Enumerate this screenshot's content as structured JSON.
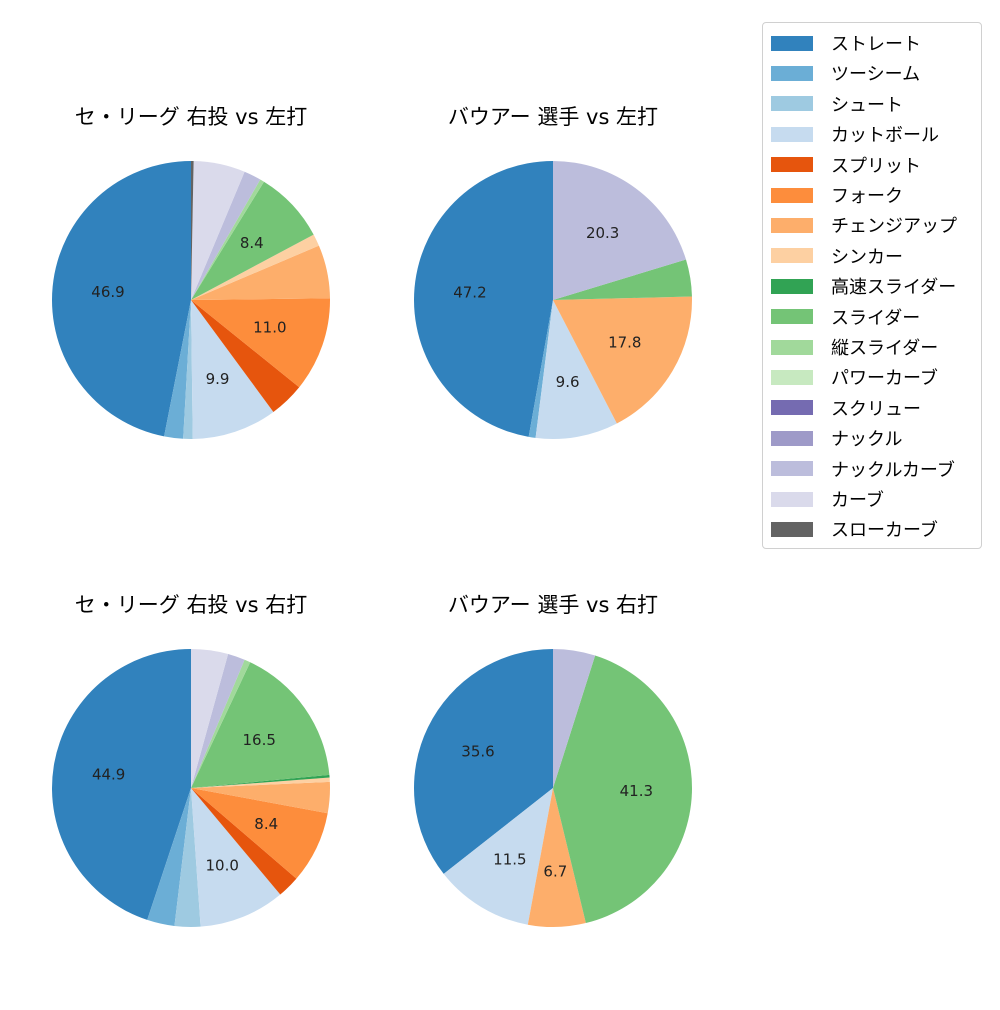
{
  "chart_data": [
    {
      "type": "pie",
      "title": "セ・リーグ 右投 vs 左打",
      "start_angle": 90,
      "direction": "counterclockwise",
      "categories": [
        "ストレート",
        "ツーシーム",
        "シュート",
        "カットボール",
        "スプリット",
        "フォーク",
        "チェンジアップ",
        "シンカー",
        "スライダー",
        "縦スライダー",
        "ナックルカーブ",
        "カーブ",
        "スローカーブ"
      ],
      "values": [
        46.9,
        2.2,
        1.1,
        9.9,
        4.1,
        11.0,
        6.2,
        1.4,
        8.4,
        0.5,
        2.0,
        6.0,
        0.3
      ],
      "labeled": {
        "ストレート": "46.9",
        "カットボール": "9.9",
        "フォーク": "11.0",
        "スライダー": "8.4"
      }
    },
    {
      "type": "pie",
      "title": "バウアー 選手 vs 左打",
      "start_angle": 90,
      "direction": "counterclockwise",
      "categories": [
        "ストレート",
        "ツーシーム",
        "カットボール",
        "チェンジアップ",
        "スライダー",
        "ナックルカーブ"
      ],
      "values": [
        47.2,
        0.8,
        9.6,
        17.8,
        4.3,
        20.3
      ],
      "labeled": {
        "ストレート": "47.2",
        "カットボール": "9.6",
        "チェンジアップ": "17.8",
        "ナックルカーブ": "20.3"
      }
    },
    {
      "type": "pie",
      "title": "セ・リーグ 右投 vs 右打",
      "start_angle": 90,
      "direction": "counterclockwise",
      "categories": [
        "ストレート",
        "ツーシーム",
        "シュート",
        "カットボール",
        "スプリット",
        "フォーク",
        "チェンジアップ",
        "シンカー",
        "高速スライダー",
        "スライダー",
        "縦スライダー",
        "ナックルカーブ",
        "カーブ"
      ],
      "values": [
        44.9,
        3.2,
        3.0,
        10.0,
        2.6,
        8.4,
        3.6,
        0.5,
        0.3,
        16.5,
        0.7,
        2.0,
        4.3
      ],
      "labeled": {
        "ストレート": "44.9",
        "カットボール": "10.0",
        "フォーク": "8.4",
        "スライダー": "16.5"
      }
    },
    {
      "type": "pie",
      "title": "バウアー 選手 vs 右打",
      "start_angle": 90,
      "direction": "counterclockwise",
      "categories": [
        "ストレート",
        "カットボール",
        "チェンジアップ",
        "スライダー",
        "ナックルカーブ"
      ],
      "values": [
        35.6,
        11.5,
        6.7,
        41.3,
        4.9
      ],
      "labeled": {
        "ストレート": "35.6",
        "カットボール": "11.5",
        "チェンジアップ": "6.7",
        "スライダー": "41.3"
      }
    }
  ],
  "legend": {
    "position": "upper right",
    "items": [
      {
        "label": "ストレート",
        "color": "#3182bd"
      },
      {
        "label": "ツーシーム",
        "color": "#6baed6"
      },
      {
        "label": "シュート",
        "color": "#9ecae1"
      },
      {
        "label": "カットボール",
        "color": "#c6dbef"
      },
      {
        "label": "スプリット",
        "color": "#e6550d"
      },
      {
        "label": "フォーク",
        "color": "#fd8d3c"
      },
      {
        "label": "チェンジアップ",
        "color": "#fdae6b"
      },
      {
        "label": "シンカー",
        "color": "#fdd0a2"
      },
      {
        "label": "高速スライダー",
        "color": "#31a354"
      },
      {
        "label": "スライダー",
        "color": "#74c476"
      },
      {
        "label": "縦スライダー",
        "color": "#a1d99b"
      },
      {
        "label": "パワーカーブ",
        "color": "#c7e9c0"
      },
      {
        "label": "スクリュー",
        "color": "#756bb1"
      },
      {
        "label": "ナックル",
        "color": "#9e9ac8"
      },
      {
        "label": "ナックルカーブ",
        "color": "#bcbddc"
      },
      {
        "label": "カーブ",
        "color": "#dadaeb"
      },
      {
        "label": "スローカーブ",
        "color": "#636363"
      }
    ]
  },
  "panels": [
    {
      "title": "セ・リーグ 右投 vs 左打"
    },
    {
      "title": "バウアー 選手 vs 左打"
    },
    {
      "title": "セ・リーグ 右投 vs 右打"
    },
    {
      "title": "バウアー 選手 vs 右打"
    }
  ]
}
